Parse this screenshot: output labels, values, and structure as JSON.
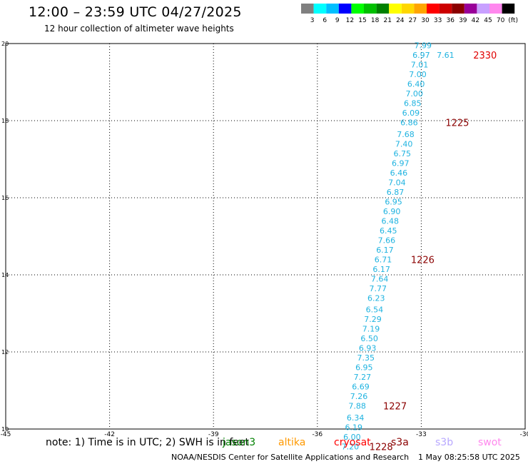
{
  "header": {
    "title": "12:00 – 23:59 UTC 04/27/2025",
    "subtitle": "12 hour collection of altimeter wave heights"
  },
  "color_scale": {
    "colors": [
      "#808080",
      "#00ffff",
      "#00bfff",
      "#0000ff",
      "#00ff00",
      "#00c000",
      "#008000",
      "#ffff00",
      "#ffd700",
      "#ffa500",
      "#ff0000",
      "#cd0000",
      "#8b0000",
      "#990099",
      "#c8a0ff",
      "#ff88ee",
      "#000000"
    ],
    "labels": [
      "3",
      "6",
      "9",
      "12",
      "15",
      "18",
      "21",
      "24",
      "27",
      "30",
      "33",
      "36",
      "39",
      "42",
      "45",
      "70",
      "(ft)"
    ]
  },
  "chart_data": {
    "type": "scatter",
    "xlim": [
      -45,
      -30
    ],
    "ylim": [
      10,
      20
    ],
    "x_ticks": [
      "-45",
      "-42",
      "-39",
      "-36",
      "-33",
      "-30"
    ],
    "y_ticks": [
      "10",
      "12",
      "14",
      "16",
      "18",
      "20"
    ],
    "grid": true,
    "points": [
      {
        "x": -32.95,
        "y": 19.95,
        "label": "7.99"
      },
      {
        "x": -32.3,
        "y": 19.7,
        "label": "7.61"
      },
      {
        "x": -33.0,
        "y": 19.7,
        "label": "6.97"
      },
      {
        "x": -33.05,
        "y": 19.45,
        "label": "7.01"
      },
      {
        "x": -33.1,
        "y": 19.2,
        "label": "7.00"
      },
      {
        "x": -33.15,
        "y": 18.95,
        "label": "6.40"
      },
      {
        "x": -33.2,
        "y": 18.7,
        "label": "7.00"
      },
      {
        "x": -33.25,
        "y": 18.45,
        "label": "6.85"
      },
      {
        "x": -33.3,
        "y": 18.2,
        "label": "6.09"
      },
      {
        "x": -33.35,
        "y": 17.95,
        "label": "6.86"
      },
      {
        "x": -33.45,
        "y": 17.65,
        "label": "7.68"
      },
      {
        "x": -33.5,
        "y": 17.4,
        "label": "7.40"
      },
      {
        "x": -33.55,
        "y": 17.15,
        "label": "6.75"
      },
      {
        "x": -33.6,
        "y": 16.9,
        "label": "6.97"
      },
      {
        "x": -33.65,
        "y": 16.65,
        "label": "6.46"
      },
      {
        "x": -33.7,
        "y": 16.4,
        "label": "7.04"
      },
      {
        "x": -33.75,
        "y": 16.15,
        "label": "6.87"
      },
      {
        "x": -33.8,
        "y": 15.9,
        "label": "6.95"
      },
      {
        "x": -33.85,
        "y": 15.65,
        "label": "6.90"
      },
      {
        "x": -33.9,
        "y": 15.4,
        "label": "6.48"
      },
      {
        "x": -33.95,
        "y": 15.15,
        "label": "6.45"
      },
      {
        "x": -34.0,
        "y": 14.9,
        "label": "7.66"
      },
      {
        "x": -34.05,
        "y": 14.65,
        "label": "6.17"
      },
      {
        "x": -34.1,
        "y": 14.4,
        "label": "6.71"
      },
      {
        "x": -34.15,
        "y": 14.15,
        "label": "6.17"
      },
      {
        "x": -34.2,
        "y": 13.9,
        "label": "7.64"
      },
      {
        "x": -34.25,
        "y": 13.65,
        "label": "7.77"
      },
      {
        "x": -34.3,
        "y": 13.4,
        "label": "6.23"
      },
      {
        "x": -34.35,
        "y": 13.1,
        "label": "6.54"
      },
      {
        "x": -34.4,
        "y": 12.85,
        "label": "7.29"
      },
      {
        "x": -34.45,
        "y": 12.6,
        "label": "7.19"
      },
      {
        "x": -34.5,
        "y": 12.35,
        "label": "6.50"
      },
      {
        "x": -34.55,
        "y": 12.1,
        "label": "6.93"
      },
      {
        "x": -34.6,
        "y": 11.85,
        "label": "7.35"
      },
      {
        "x": -34.65,
        "y": 11.6,
        "label": "6.95"
      },
      {
        "x": -34.7,
        "y": 11.35,
        "label": "7.27"
      },
      {
        "x": -34.75,
        "y": 11.1,
        "label": "6.69"
      },
      {
        "x": -34.8,
        "y": 10.85,
        "label": "7.26"
      },
      {
        "x": -34.85,
        "y": 10.6,
        "label": "7.88"
      },
      {
        "x": -34.9,
        "y": 10.3,
        "label": "6.34"
      },
      {
        "x": -34.95,
        "y": 10.05,
        "label": "6.19"
      },
      {
        "x": -35.0,
        "y": 9.8,
        "label": "6.00"
      },
      {
        "x": -35.05,
        "y": 9.55,
        "label": "7.20"
      }
    ],
    "time_labels": [
      {
        "x": -31.5,
        "y": 19.7,
        "label": "2330"
      },
      {
        "x": -32.3,
        "y": 17.95,
        "label": "1225"
      },
      {
        "x": -33.3,
        "y": 14.4,
        "label": "1226"
      },
      {
        "x": -34.1,
        "y": 10.6,
        "label": "1227"
      },
      {
        "x": -34.5,
        "y": 9.55,
        "label": "1228"
      }
    ],
    "point_color": "#1fb3e0",
    "time_color": "#8b0000",
    "latest_time_color": "#e00000"
  },
  "footer": {
    "note": "note: 1) Time is in UTC; 2) SWH is in feet",
    "satellites": [
      {
        "name": "jason3",
        "color": "#008000"
      },
      {
        "name": "altika",
        "color": "#ff9900"
      },
      {
        "name": "cryosat",
        "color": "#ff0000"
      },
      {
        "name": "s3a",
        "color": "#8b0000"
      },
      {
        "name": "s3b",
        "color": "#b8a8ff"
      },
      {
        "name": "swot",
        "color": "#ff88ee"
      }
    ],
    "credit": "NOAA/NESDIS Center for Satellite Applications and Research",
    "timestamp": "1 May 08:25:58 UTC 2025"
  }
}
